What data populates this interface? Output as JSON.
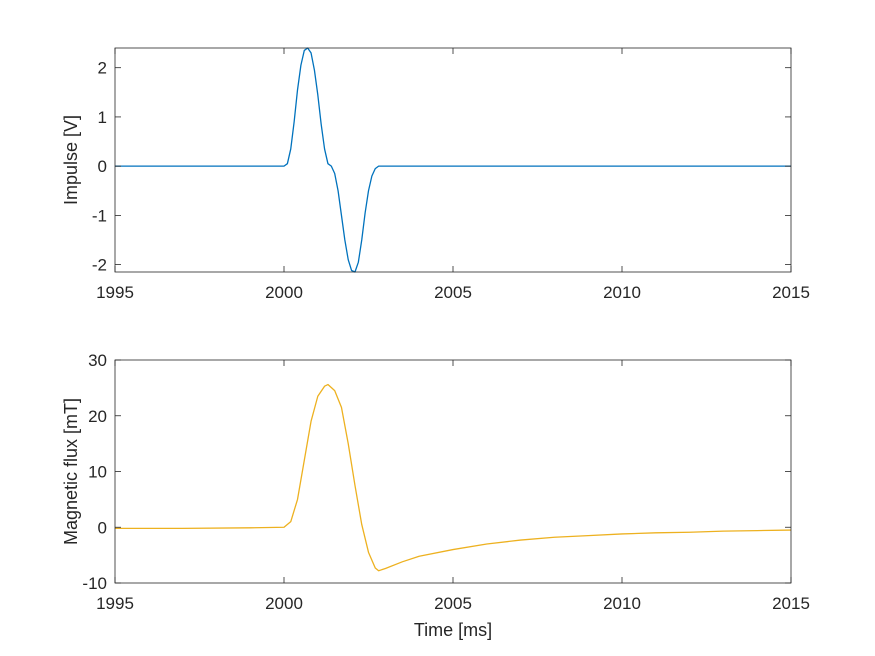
{
  "chart_data": [
    {
      "type": "line",
      "xlabel": "",
      "ylabel": "Impulse [V]",
      "xlim": [
        1995,
        2015
      ],
      "ylim": [
        -2.15,
        2.4
      ],
      "xticks": [
        1995,
        2000,
        2005,
        2010,
        2015
      ],
      "yticks": [
        -2,
        -1,
        0,
        1,
        2
      ],
      "color": "#0072BD",
      "series": [
        {
          "x": [
            1995,
            2000,
            2000.1,
            2000.2,
            2000.3,
            2000.4,
            2000.5,
            2000.6,
            2000.7,
            2000.8,
            2000.9,
            2001.0,
            2001.1,
            2001.2,
            2001.3,
            2001.4,
            2001.5,
            2001.6,
            2001.7,
            2001.8,
            2001.9,
            2002.0,
            2002.1,
            2002.2,
            2002.3,
            2002.4,
            2002.5,
            2002.6,
            2002.7,
            2002.8,
            2002.9,
            2015
          ],
          "values": [
            0,
            0,
            0.05,
            0.35,
            0.9,
            1.55,
            2.05,
            2.35,
            2.4,
            2.3,
            1.95,
            1.45,
            0.85,
            0.35,
            0.05,
            0.0,
            -0.15,
            -0.5,
            -1.0,
            -1.5,
            -1.9,
            -2.12,
            -2.15,
            -1.95,
            -1.5,
            -0.95,
            -0.5,
            -0.2,
            -0.05,
            0,
            0,
            0
          ]
        }
      ]
    },
    {
      "type": "line",
      "xlabel": "Time [ms]",
      "ylabel": "Magnetic flux [mT]",
      "xlim": [
        1995,
        2015
      ],
      "ylim": [
        -10,
        30
      ],
      "xticks": [
        1995,
        2000,
        2005,
        2010,
        2015
      ],
      "yticks": [
        -10,
        0,
        10,
        20,
        30
      ],
      "color": "#EDB120",
      "series": [
        {
          "x": [
            1995,
            1997,
            1999,
            2000,
            2000.2,
            2000.4,
            2000.6,
            2000.8,
            2001.0,
            2001.2,
            2001.3,
            2001.5,
            2001.7,
            2001.9,
            2002.1,
            2002.3,
            2002.5,
            2002.7,
            2002.8,
            2003.0,
            2003.5,
            2004.0,
            2005.0,
            2006.0,
            2007.0,
            2008.0,
            2009.0,
            2010.0,
            2011.0,
            2012.0,
            2013.0,
            2014.0,
            2015.0
          ],
          "values": [
            -0.2,
            -0.2,
            -0.1,
            0,
            1.0,
            5.0,
            12.0,
            19.0,
            23.5,
            25.3,
            25.6,
            24.5,
            21.5,
            15.0,
            7.5,
            0.5,
            -4.5,
            -7.3,
            -7.8,
            -7.4,
            -6.2,
            -5.2,
            -4.0,
            -3.0,
            -2.3,
            -1.8,
            -1.5,
            -1.2,
            -1.0,
            -0.9,
            -0.7,
            -0.6,
            -0.5
          ]
        }
      ]
    }
  ]
}
